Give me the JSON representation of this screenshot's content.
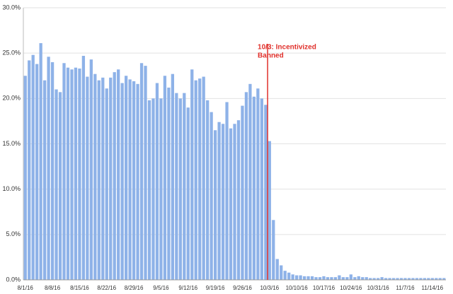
{
  "chart_data": {
    "type": "bar",
    "categories": [
      "8/1/16",
      null,
      null,
      null,
      null,
      null,
      null,
      "8/8/16",
      null,
      null,
      null,
      null,
      null,
      null,
      "8/15/16",
      null,
      null,
      null,
      null,
      null,
      null,
      "8/22/16",
      null,
      null,
      null,
      null,
      null,
      null,
      "8/29/16",
      null,
      null,
      null,
      null,
      null,
      null,
      "9/5/16",
      null,
      null,
      null,
      null,
      null,
      null,
      "9/12/16",
      null,
      null,
      null,
      null,
      null,
      null,
      "9/19/16",
      null,
      null,
      null,
      null,
      null,
      null,
      "9/26/16",
      null,
      null,
      null,
      null,
      null,
      null,
      "10/3/16",
      null,
      null,
      null,
      null,
      null,
      null,
      "10/10/16",
      null,
      null,
      null,
      null,
      null,
      null,
      "10/17/16",
      null,
      null,
      null,
      null,
      null,
      null,
      "10/24/16",
      null,
      null,
      null,
      null,
      null,
      null,
      "10/31/16",
      null,
      null,
      null,
      null,
      null,
      null,
      "11/7/16",
      null,
      null,
      null,
      null,
      null,
      null,
      "11/14/16",
      null,
      null,
      null
    ],
    "values": [
      22.5,
      24.2,
      24.8,
      23.8,
      26.1,
      22.0,
      24.6,
      24.0,
      21.0,
      20.7,
      23.9,
      23.4,
      23.2,
      23.4,
      23.3,
      24.7,
      22.4,
      24.3,
      22.7,
      22.0,
      22.3,
      21.1,
      22.3,
      22.9,
      23.2,
      21.7,
      22.5,
      22.1,
      21.9,
      21.6,
      23.9,
      23.6,
      19.8,
      20.0,
      21.7,
      20.0,
      22.5,
      21.2,
      22.7,
      20.6,
      20.0,
      20.6,
      19.0,
      23.2,
      22.0,
      22.2,
      22.4,
      19.8,
      18.5,
      16.5,
      17.4,
      17.2,
      19.6,
      16.7,
      17.2,
      17.6,
      19.2,
      20.7,
      21.6,
      20.2,
      21.1,
      20.0,
      19.3,
      15.3,
      6.6,
      2.3,
      1.6,
      1.0,
      0.8,
      0.6,
      0.5,
      0.5,
      0.4,
      0.4,
      0.4,
      0.3,
      0.3,
      0.4,
      0.3,
      0.3,
      0.3,
      0.5,
      0.3,
      0.3,
      0.6,
      0.3,
      0.4,
      0.3,
      0.3,
      0.2,
      0.2,
      0.2,
      0.3,
      0.2,
      0.2,
      0.2,
      0.2,
      0.2,
      0.2,
      0.2,
      0.2,
      0.2,
      0.2,
      0.2,
      0.2,
      0.2,
      0.2,
      0.2,
      0.2
    ],
    "color": "#8eb2e8",
    "ylim": [
      0,
      30
    ],
    "yticks": [
      {
        "value": 0,
        "label": "0.0%"
      },
      {
        "value": 5,
        "label": "5.0%"
      },
      {
        "value": 10,
        "label": "10.0%"
      },
      {
        "value": 15,
        "label": "15.0%"
      },
      {
        "value": 20,
        "label": "20.0%"
      },
      {
        "value": 25,
        "label": "25.0%"
      },
      {
        "value": 30,
        "label": "30.0%"
      }
    ],
    "grid": true,
    "annotation": {
      "text": [
        "10/3: Incentivized",
        "Banned"
      ],
      "x": "10/3/16",
      "color": "#e0302b"
    }
  }
}
